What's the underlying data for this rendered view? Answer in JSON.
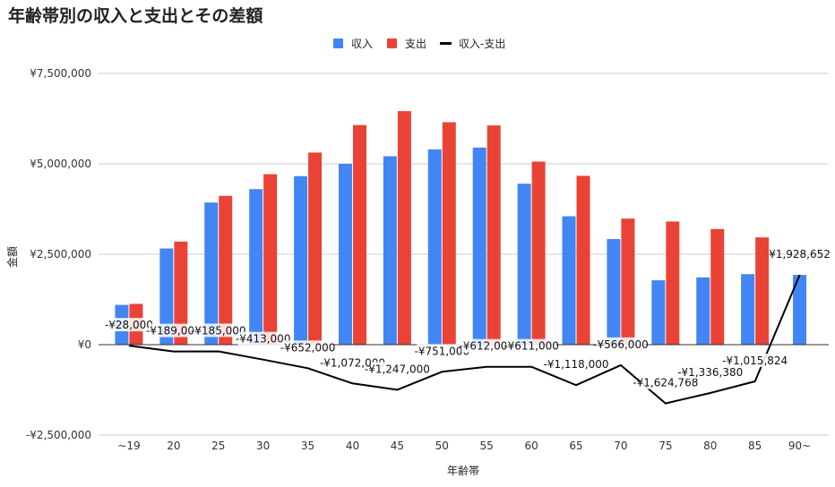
{
  "chart_data": {
    "type": "bar",
    "title": "年齢帯別の収入と支出とその差額",
    "xlabel": "年齢帯",
    "ylabel": "金額",
    "ylim": [
      -2500000,
      7500000
    ],
    "yticks": [
      -2500000,
      0,
      2500000,
      5000000,
      7500000
    ],
    "ytick_labels": [
      "-¥2,500,000",
      "¥0",
      "¥2,500,000",
      "¥5,000,000",
      "¥7,500,000"
    ],
    "grid": true,
    "legend_position": "top",
    "categories": [
      "~19",
      "20",
      "25",
      "30",
      "35",
      "40",
      "45",
      "50",
      "55",
      "60",
      "65",
      "70",
      "75",
      "80",
      "85",
      "90~"
    ],
    "series": [
      {
        "name": "収入",
        "type": "bar",
        "color": "#4285f4",
        "values": [
          1100000,
          2660000,
          3930000,
          4300000,
          4660000,
          5000000,
          5210000,
          5400000,
          5450000,
          4450000,
          3550000,
          2920000,
          1780000,
          1860000,
          1950000,
          1928652
        ]
      },
      {
        "name": "支出",
        "type": "bar",
        "color": "#ea4335",
        "values": [
          1128000,
          2849000,
          4115000,
          4713000,
          5312000,
          6072000,
          6457000,
          6151000,
          6062000,
          5061000,
          4668000,
          3486000,
          3404768,
          3196380,
          2965824,
          null
        ]
      },
      {
        "name": "収入-支出",
        "type": "line",
        "color": "#000000",
        "values": [
          -28000,
          -189000,
          -185000,
          -413000,
          -652000,
          -1072000,
          -1247000,
          -751000,
          -612000,
          -611000,
          -1118000,
          -566000,
          -1624768,
          -1336380,
          -1015824,
          1928652
        ],
        "labels": [
          "-¥28,000",
          "-¥189,000",
          "-¥185,000",
          "-¥413,000",
          "-¥652,000",
          "-¥1,072,000",
          "-¥1,247,000",
          "-¥751,000",
          "-¥612,000",
          "-¥611,000",
          "-¥1,118,000",
          "-¥566,000",
          "-¥1,624,768",
          "-¥1,336,380",
          "-¥1,015,824",
          "¥1,928,652"
        ]
      }
    ]
  }
}
